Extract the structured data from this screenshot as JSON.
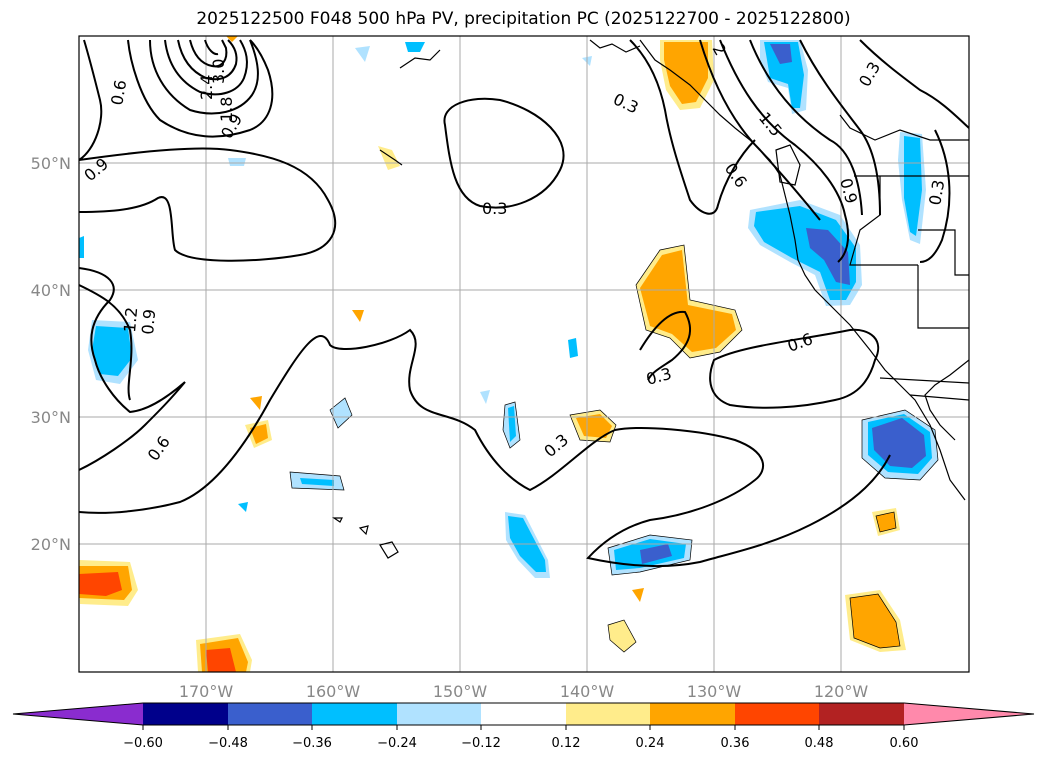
{
  "title": "2025122500 F048 500 hPa PV, precipitation PC (2025122700 - 2025122800)",
  "map": {
    "lat_labels": [
      "50°N",
      "40°N",
      "30°N",
      "20°N"
    ],
    "lon_labels": [
      "170°W",
      "160°W",
      "150°W",
      "140°W",
      "130°W",
      "120°W"
    ],
    "contour_labels": [
      "0.3",
      "0.3",
      "0.3",
      "0.3",
      "0.3",
      "0.3",
      "0.6",
      "0.6",
      "0.6",
      "0.9",
      "0.9",
      "0.9",
      "0.9",
      "1.2",
      "1.5",
      "2.4",
      "3.0",
      "1.8",
      "0.6",
      "2"
    ]
  },
  "colorbar": {
    "ticks": [
      "−0.60",
      "−0.48",
      "−0.36",
      "−0.24",
      "−0.12",
      "0.12",
      "0.24",
      "0.36",
      "0.48",
      "0.60"
    ],
    "colors": [
      "#8a2ccf",
      "#00008b",
      "#3a5fcd",
      "#00bfff",
      "#b0e2ff",
      "#ffffff",
      "#ffec8b",
      "#ffa500",
      "#ff4500",
      "#b22222",
      "#ff89ab"
    ]
  }
}
